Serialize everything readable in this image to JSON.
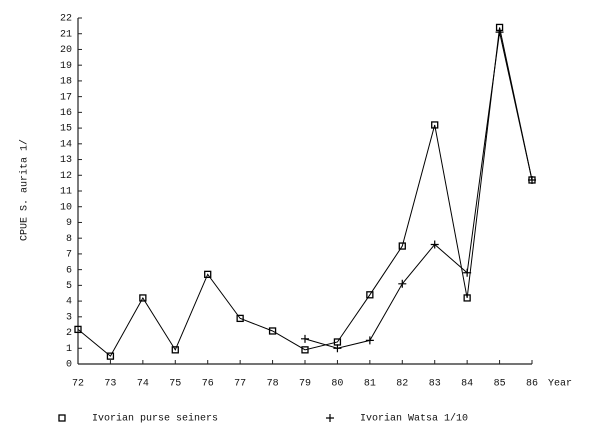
{
  "chart_data": {
    "type": "line",
    "y_label": "CPUE S. aurita 1/",
    "x_label": "Year",
    "x": [
      72,
      73,
      74,
      75,
      76,
      77,
      78,
      79,
      80,
      81,
      82,
      83,
      84,
      85,
      86
    ],
    "series": [
      {
        "name": "Ivorian purse seiners",
        "color": "#000000",
        "marker": "square",
        "values": [
          2.2,
          0.5,
          4.2,
          0.9,
          5.7,
          2.9,
          2.1,
          0.9,
          1.4,
          4.4,
          7.5,
          15.2,
          4.2,
          21.4,
          11.7
        ]
      },
      {
        "name": "Ivorian Watsa 1/10",
        "color": "#000000",
        "marker": "plus",
        "values": [
          null,
          null,
          null,
          null,
          null,
          null,
          null,
          1.6,
          1.0,
          1.5,
          5.1,
          7.6,
          5.8,
          21.1,
          11.7
        ]
      }
    ],
    "xlim": [
      72,
      86
    ],
    "xticks": [
      72,
      73,
      74,
      75,
      76,
      77,
      78,
      79,
      80,
      81,
      82,
      83,
      84,
      85,
      86
    ],
    "ylim": [
      0,
      22
    ],
    "yticks": [
      0,
      1,
      2,
      3,
      4,
      5,
      6,
      7,
      8,
      9,
      10,
      11,
      12,
      13,
      14,
      15,
      16,
      17,
      18,
      19,
      20,
      21,
      22
    ],
    "grid": false,
    "legend": "bottom"
  }
}
